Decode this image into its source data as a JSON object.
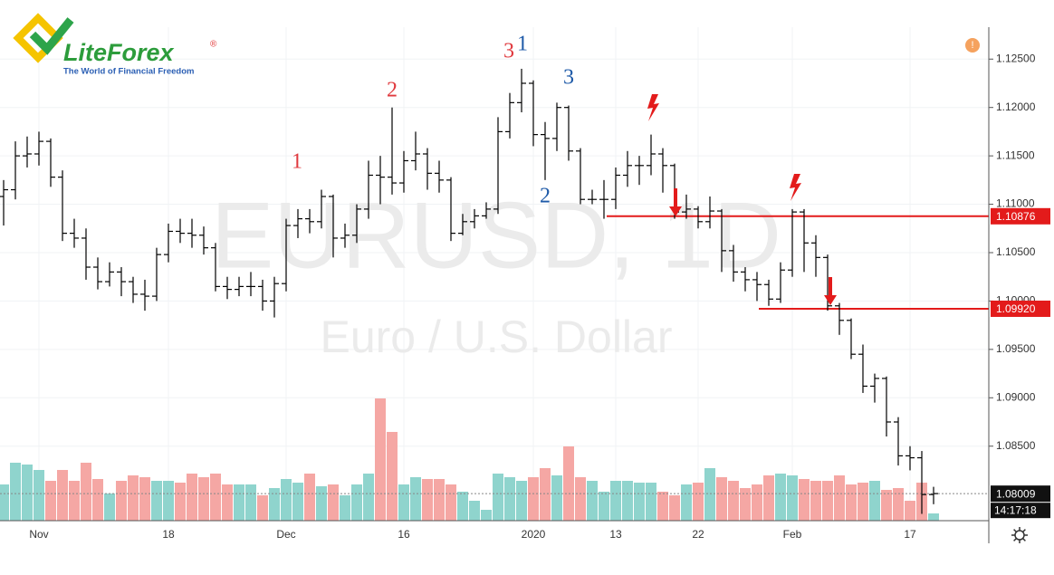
{
  "brand": {
    "name": "LiteForex",
    "mark": "®",
    "tagline": "The World of Financial Freedom"
  },
  "alert": "!",
  "chart_data": {
    "type": "ohlc",
    "watermark": "EURUSD, 1D",
    "subtitle": "Euro / U.S. Dollar",
    "categories": [
      null,
      null,
      null,
      "Nov",
      null,
      null,
      null,
      null,
      null,
      null,
      null,
      null,
      null,
      null,
      "18",
      null,
      null,
      null,
      null,
      null,
      null,
      null,
      null,
      null,
      "Dec",
      null,
      null,
      null,
      null,
      null,
      null,
      null,
      null,
      null,
      "16",
      null,
      null,
      null,
      null,
      null,
      null,
      null,
      null,
      null,
      null,
      "2020",
      null,
      null,
      null,
      null,
      null,
      null,
      "13",
      null,
      null,
      null,
      null,
      null,
      null,
      "22",
      null,
      null,
      null,
      null,
      null,
      null,
      null,
      "Feb",
      null,
      null,
      null,
      null,
      null,
      null,
      null,
      null,
      null,
      "17",
      null,
      null
    ],
    "open": [
      1.1108,
      1.1115,
      1.115,
      1.1152,
      1.1165,
      1.1128,
      1.107,
      1.1065,
      1.1035,
      1.102,
      1.103,
      1.102,
      1.1007,
      1.1005,
      1.1048,
      1.1072,
      1.107,
      1.1068,
      1.1055,
      1.1015,
      1.1012,
      1.1015,
      1.1015,
      1.1,
      1.1018,
      1.1078,
      1.1085,
      1.1082,
      1.1108,
      1.1065,
      1.1068,
      1.1095,
      1.113,
      1.1128,
      1.1122,
      1.1145,
      1.1152,
      1.1132,
      1.1125,
      1.107,
      1.1082,
      1.1088,
      1.1095,
      1.1175,
      1.1205,
      1.1225,
      1.1172,
      1.1168,
      1.12,
      1.1155,
      1.1105,
      1.1105,
      1.1105,
      1.113,
      1.114,
      1.114,
      1.1152,
      1.114,
      1.1092,
      1.1095,
      1.1082,
      1.1093,
      1.1052,
      1.103,
      1.1022,
      1.1017,
      1.1002,
      1.1032,
      1.1092,
      1.106,
      1.1045,
      1.0995,
      1.098,
      1.0945,
      1.0912,
      1.092,
      1.0875,
      1.084,
      1.0838,
      1.08
    ],
    "high": [
      1.1125,
      1.1165,
      1.117,
      1.1175,
      1.1168,
      1.1135,
      1.1085,
      1.1075,
      1.1045,
      1.104,
      1.1035,
      1.1025,
      1.1022,
      1.1055,
      1.108,
      1.1085,
      1.1085,
      1.1077,
      1.106,
      1.1025,
      1.1025,
      1.103,
      1.1022,
      1.1025,
      1.1085,
      1.1095,
      1.1095,
      1.1115,
      1.111,
      1.108,
      1.11,
      1.1145,
      1.115,
      1.12,
      1.1155,
      1.1175,
      1.1158,
      1.1145,
      1.1128,
      1.109,
      1.1095,
      1.1102,
      1.119,
      1.1215,
      1.124,
      1.1228,
      1.1185,
      1.1205,
      1.1202,
      1.1158,
      1.1115,
      1.1125,
      1.1138,
      1.1155,
      1.115,
      1.1172,
      1.1158,
      1.1142,
      1.111,
      1.1098,
      1.1108,
      1.1095,
      1.1058,
      1.1035,
      1.103,
      1.1022,
      1.104,
      1.1095,
      1.1095,
      1.1068,
      1.1048,
      1.0998,
      1.0982,
      1.0955,
      1.0925,
      1.0922,
      1.088,
      1.085,
      1.0845,
      1.0808
    ],
    "low": [
      1.1078,
      1.1105,
      1.1138,
      1.114,
      1.1118,
      1.1062,
      1.1055,
      1.1022,
      1.1012,
      1.1015,
      1.1005,
      1.0998,
      1.099,
      1.1,
      1.104,
      1.106,
      1.1055,
      1.1048,
      1.101,
      1.1002,
      1.1005,
      1.1005,
      1.099,
      1.0983,
      1.101,
      1.1065,
      1.107,
      1.1075,
      1.1045,
      1.1055,
      1.106,
      1.1085,
      1.11,
      1.111,
      1.1112,
      1.1135,
      1.1115,
      1.1112,
      1.1062,
      1.1068,
      1.1075,
      1.1085,
      1.109,
      1.1168,
      1.1195,
      1.116,
      1.1125,
      1.1155,
      1.1145,
      1.11,
      1.11,
      1.1085,
      1.1095,
      1.1118,
      1.112,
      1.113,
      1.1112,
      1.1085,
      1.1085,
      1.1075,
      1.1075,
      1.103,
      1.102,
      1.101,
      1.1,
      1.0995,
      1.0998,
      1.1025,
      1.103,
      1.1025,
      1.099,
      1.0965,
      1.094,
      1.0905,
      1.0895,
      1.086,
      1.083,
      1.0825,
      1.078,
      1.079
    ],
    "close": [
      1.1115,
      1.115,
      1.1152,
      1.1165,
      1.1128,
      1.107,
      1.1065,
      1.1035,
      1.102,
      1.103,
      1.102,
      1.1007,
      1.1005,
      1.1048,
      1.1072,
      1.107,
      1.1068,
      1.1055,
      1.1015,
      1.1012,
      1.1015,
      1.1015,
      1.1,
      1.1018,
      1.1078,
      1.1085,
      1.1082,
      1.1108,
      1.1065,
      1.1068,
      1.1095,
      1.113,
      1.1128,
      1.1122,
      1.1145,
      1.1152,
      1.1132,
      1.1125,
      1.107,
      1.1082,
      1.1088,
      1.1095,
      1.1175,
      1.1205,
      1.1225,
      1.1172,
      1.1168,
      1.12,
      1.1155,
      1.1105,
      1.1105,
      1.1105,
      1.113,
      1.114,
      1.114,
      1.1152,
      1.114,
      1.1092,
      1.1095,
      1.1082,
      1.1093,
      1.1052,
      1.103,
      1.1022,
      1.1017,
      1.1002,
      1.1032,
      1.1092,
      1.106,
      1.1045,
      1.0995,
      1.098,
      1.0945,
      1.0912,
      1.092,
      1.0875,
      1.084,
      1.0838,
      1.08,
      1.0801
    ],
    "volume": [
      40,
      64,
      62,
      56,
      44,
      56,
      44,
      64,
      46,
      30,
      44,
      50,
      48,
      44,
      44,
      42,
      52,
      48,
      52,
      40,
      40,
      40,
      28,
      36,
      46,
      42,
      52,
      38,
      40,
      28,
      40,
      52,
      135,
      98,
      40,
      48,
      46,
      46,
      40,
      32,
      22,
      12,
      52,
      48,
      44,
      48,
      58,
      50,
      82,
      48,
      44,
      32,
      44,
      44,
      42,
      42,
      32,
      28,
      40,
      42,
      58,
      48,
      44,
      36,
      40,
      50,
      52,
      50,
      46,
      44,
      44,
      50,
      40,
      42,
      44,
      34,
      36,
      22,
      42,
      8
    ],
    "bar_color": "#000000",
    "up_color": "#8fd4cd",
    "down_color": "#f5a7a4",
    "ylim": [
      1.0773,
      1.1283
    ],
    "yticks": [
      {
        "value": 1.085,
        "label": "1.08500"
      },
      {
        "value": 1.09,
        "label": "1.09000"
      },
      {
        "value": 1.095,
        "label": "1.09500"
      },
      {
        "value": 1.1,
        "label": "1.10000"
      },
      {
        "value": 1.105,
        "label": "1.10500"
      },
      {
        "value": 1.11,
        "label": "1.11000"
      },
      {
        "value": 1.115,
        "label": "1.11500"
      },
      {
        "value": 1.12,
        "label": "1.12000"
      },
      {
        "value": 1.125,
        "label": "1.12500"
      }
    ],
    "grid": true,
    "levels": [
      {
        "value": 1.10876,
        "label": "1.10876",
        "color": "#e31b1b"
      },
      {
        "value": 1.0992,
        "label": "1.09920",
        "color": "#e31b1b"
      }
    ],
    "last_price": {
      "value": 1.08009,
      "label": "1.08009"
    },
    "countdown": "14:17:18",
    "annotations": [
      {
        "text": "1",
        "color": "#e0393e"
      },
      {
        "text": "2",
        "color": "#e0393e"
      },
      {
        "text": "3",
        "color": "#e0393e"
      },
      {
        "text": "1",
        "color": "#1e5aa8"
      },
      {
        "text": "3",
        "color": "#1e5aa8"
      },
      {
        "text": "2",
        "color": "#1e5aa8"
      }
    ]
  }
}
